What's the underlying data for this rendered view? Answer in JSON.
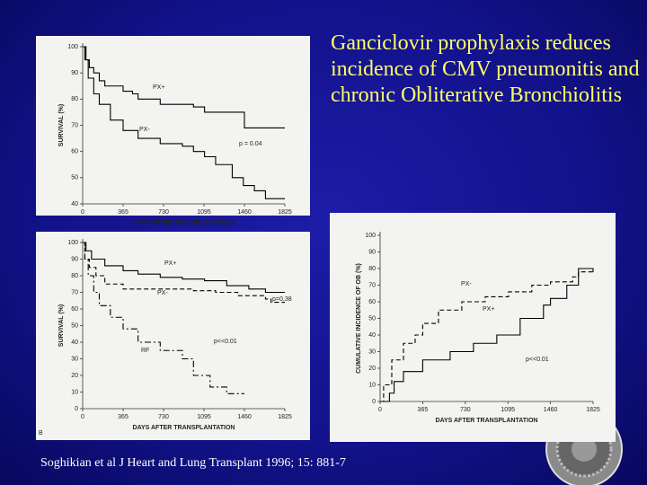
{
  "slide": {
    "title": "Ganciclovir prophylaxis reduces incidence of CMV pneumonitis and chronic Obliterative Bronchiolitis",
    "citation": "Soghikian et al J Heart and Lung Transplant 1996; 15: 881-7"
  },
  "chart_data": [
    {
      "type": "line",
      "steps": true,
      "xlabel": "DAYS AFTER TRANSPLANTATION",
      "ylabel": "SURVIVAL (%)",
      "xlim": [
        0,
        1825
      ],
      "xticks": [
        0,
        365,
        730,
        1095,
        1460,
        1825
      ],
      "ylim": [
        40,
        100
      ],
      "yticks": [
        40,
        50,
        60,
        70,
        80,
        90,
        100
      ],
      "annotations": [
        "p = 0.04"
      ],
      "series": [
        {
          "name": "PX+",
          "color": "#000000",
          "dash": "solid",
          "x": [
            0,
            30,
            60,
            100,
            150,
            200,
            365,
            450,
            500,
            700,
            1000,
            1100,
            1460,
            1825
          ],
          "values": [
            100,
            95,
            92,
            90,
            87,
            85,
            83,
            82,
            80,
            78,
            77,
            75,
            69,
            69
          ]
        },
        {
          "name": "PX-",
          "color": "#000000",
          "dash": "solid",
          "x": [
            0,
            20,
            50,
            100,
            150,
            250,
            365,
            500,
            700,
            900,
            1000,
            1100,
            1200,
            1350,
            1450,
            1550,
            1650,
            1825
          ],
          "values": [
            100,
            95,
            88,
            82,
            78,
            72,
            68,
            65,
            63,
            62,
            60,
            58,
            55,
            50,
            47,
            45,
            42,
            42
          ]
        }
      ]
    },
    {
      "type": "line",
      "steps": true,
      "xlabel": "DAYS AFTER TRANSPLANTATION",
      "ylabel": "SURVIVAL (%)",
      "panel_label": "B",
      "xlim": [
        0,
        1825
      ],
      "xticks": [
        0,
        365,
        730,
        1095,
        1460,
        1825
      ],
      "ylim": [
        0,
        100
      ],
      "yticks": [
        0,
        10,
        20,
        30,
        40,
        50,
        60,
        70,
        80,
        90,
        100
      ],
      "annotations": [
        "p=0.38",
        "p<<0.01"
      ],
      "series": [
        {
          "name": "PX+",
          "color": "#000000",
          "dash": "solid",
          "x": [
            0,
            30,
            80,
            200,
            365,
            500,
            700,
            900,
            1100,
            1300,
            1500,
            1650,
            1825
          ],
          "values": [
            100,
            95,
            90,
            86,
            83,
            81,
            79,
            78,
            77,
            74,
            72,
            70,
            70
          ]
        },
        {
          "name": "PX-",
          "color": "#000000",
          "dash": "dashed",
          "x": [
            0,
            20,
            60,
            120,
            200,
            365,
            1000,
            1200,
            1400,
            1650,
            1700,
            1825
          ],
          "values": [
            100,
            90,
            85,
            80,
            75,
            72,
            71,
            70,
            68,
            66,
            64,
            64
          ]
        },
        {
          "name": "RF",
          "color": "#000000",
          "dash": "dashdot",
          "x": [
            0,
            20,
            50,
            100,
            150,
            250,
            365,
            500,
            700,
            900,
            1000,
            1150,
            1300,
            1460
          ],
          "values": [
            100,
            90,
            80,
            70,
            62,
            55,
            48,
            40,
            35,
            30,
            20,
            13,
            9,
            9
          ]
        }
      ]
    },
    {
      "type": "line",
      "steps": true,
      "xlabel": "DAYS AFTER TRANSPLANTATION",
      "ylabel": "CUMULATIVE INCIDENCE OF OB (%)",
      "xlim": [
        0,
        1825
      ],
      "xticks": [
        0,
        365,
        730,
        1095,
        1460,
        1825
      ],
      "ylim": [
        0,
        100
      ],
      "yticks": [
        0,
        10,
        20,
        30,
        40,
        50,
        60,
        70,
        80,
        90,
        100
      ],
      "annotations": [
        "p<<0.01"
      ],
      "series": [
        {
          "name": "PX-",
          "color": "#000000",
          "dash": "dashed",
          "x": [
            0,
            30,
            100,
            200,
            300,
            365,
            500,
            700,
            900,
            1100,
            1300,
            1460,
            1650,
            1700,
            1825
          ],
          "values": [
            0,
            10,
            25,
            35,
            40,
            47,
            55,
            60,
            63,
            66,
            70,
            72,
            75,
            78,
            78
          ]
        },
        {
          "name": "PX+",
          "color": "#000000",
          "dash": "solid",
          "x": [
            0,
            80,
            120,
            200,
            365,
            600,
            800,
            1000,
            1200,
            1400,
            1460,
            1600,
            1700,
            1825
          ],
          "values": [
            0,
            5,
            12,
            18,
            25,
            30,
            35,
            40,
            50,
            58,
            62,
            70,
            80,
            78
          ]
        }
      ]
    }
  ]
}
